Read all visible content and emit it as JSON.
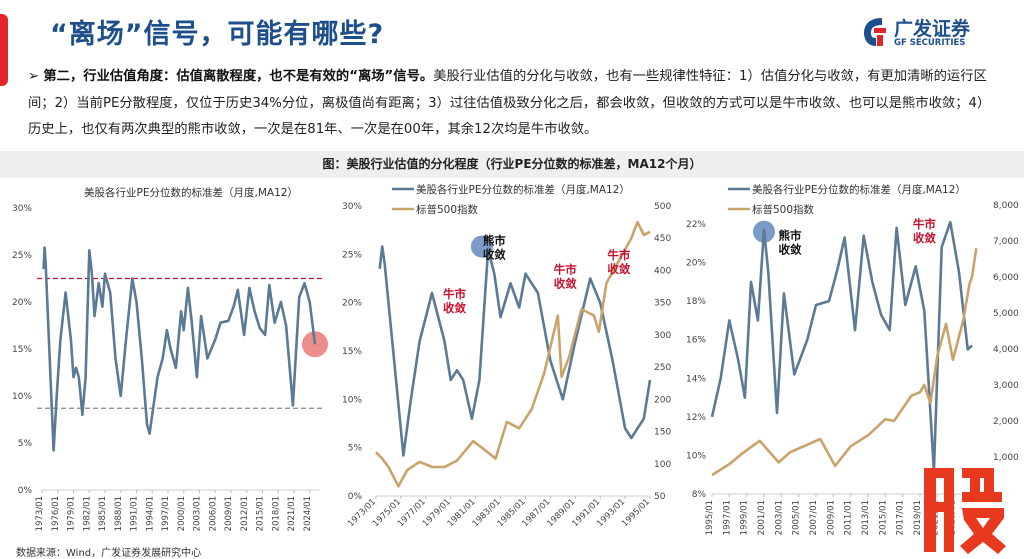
{
  "header": {
    "title": "“离场”信号，可能有哪些?",
    "logo_cn": "广发证券",
    "logo_en": "GF SECURITIES"
  },
  "bullet": {
    "marker": "➢",
    "bold": "第二，行业估值角度：估值离散程度，也不是有效的“离场”信号。",
    "text": "美股行业估值的分化与收敛，也有一些规律性特征：1）估值分化与收敛，有更加清晰的运行区间；2）当前PE分散程度，仅位于历史34%分位，离极值尚有距离；3）过往估值极致分化之后，都会收敛，但收敛的方式可以是牛市收敛、也可以是熊市收敛；4）历史上，也仅有两次典型的熊市收敛，一次是在81年、一次是在00年，其余12次均是牛市收敛。"
  },
  "caption": "图：美股行业估值的分化程度（行业PE分位数的标准差，MA12个月）",
  "source": "数据来源：Wind，广发证券发展研究中心",
  "watermark": "股",
  "colors": {
    "pe": "#5b7a95",
    "sp": "#c9a36a",
    "red": "#c8102e",
    "title": "#1d4f8c"
  },
  "chart_data": [
    {
      "type": "line",
      "title": "美股各行业PE分位数的标准差（月度,MA12）",
      "ylim": [
        0,
        30
      ],
      "yticks": [
        "0%",
        "5%",
        "10%",
        "15%",
        "20%",
        "25%",
        "30%"
      ],
      "xticks": [
        "1973/01",
        "1976/01",
        "1979/01",
        "1982/01",
        "1985/01",
        "1988/01",
        "1991/01",
        "1994/01",
        "1997/01",
        "2000/01",
        "2003/01",
        "2006/01",
        "2009/01",
        "2012/01",
        "2015/01",
        "2018/01",
        "2021/01",
        "2024/01"
      ],
      "ref_lines": [
        {
          "value": 22.5,
          "color": "#c8102e"
        },
        {
          "value": 8.7,
          "color": "#888888"
        }
      ],
      "highlight": {
        "year": 2025,
        "value": 15.5
      },
      "series": [
        {
          "name": "PE std",
          "x": [
            1973.3,
            1973.5,
            1973.7,
            1974,
            1975.2,
            1975.8,
            1976.5,
            1977.5,
            1978.5,
            1979,
            1979.5,
            1980,
            1980.7,
            1981.3,
            1982,
            1982.5,
            1983,
            1983.8,
            1984.5,
            1985,
            1986,
            1987,
            1988,
            1989,
            1990.2,
            1991,
            1992,
            1993,
            1993.5,
            1995,
            1996,
            1996.8,
            1997.5,
            1998.5,
            1999.5,
            2000,
            2000.8,
            2001.5,
            2002.5,
            2003.3,
            2004.5,
            2006,
            2007,
            2008.5,
            2009.5,
            2010.3,
            2011.5,
            2012.5,
            2013.5,
            2014.5,
            2015.5,
            2016.3,
            2017.3,
            2018.5,
            2019.5,
            2020.8,
            2022,
            2023,
            2024,
            2025
          ],
          "y": [
            23.5,
            25.8,
            24,
            20,
            4.2,
            10,
            16,
            21,
            16,
            12,
            13,
            12,
            8,
            12,
            25.5,
            23,
            18.5,
            22,
            19.5,
            23,
            21,
            14,
            10,
            16,
            22.5,
            20,
            14,
            7,
            6,
            12,
            14,
            17,
            15,
            13,
            19,
            17,
            21.5,
            18,
            12,
            18.5,
            14,
            16,
            17.8,
            18,
            19.5,
            21.3,
            16.5,
            21.5,
            19,
            17.2,
            16.5,
            21.8,
            17.8,
            20,
            17.5,
            9,
            20.5,
            22,
            20,
            15.5
          ]
        }
      ]
    },
    {
      "type": "line",
      "legend": [
        "美股各行业PE分位数的标准差（月度,MA12）",
        "标普500指数"
      ],
      "ylim": [
        0,
        30
      ],
      "y2lim": [
        50,
        500
      ],
      "yticks": [
        "0%",
        "5%",
        "10%",
        "15%",
        "20%",
        "25%",
        "30%"
      ],
      "y2ticks": [
        "50",
        "100",
        "150",
        "200",
        "250",
        "300",
        "350",
        "400",
        "450",
        "500"
      ],
      "xticks": [
        "1973/01",
        "1975/01",
        "1977/01",
        "1979/01",
        "1981/01",
        "1983/01",
        "1985/01",
        "1987/01",
        "1989/01",
        "1991/01",
        "1993/01",
        "1995/01"
      ],
      "annotations": [
        {
          "text": "牛市\n收敛",
          "kind": "bull",
          "year": 1979.3,
          "value": 20.5
        },
        {
          "text": "熊市\n收敛",
          "kind": "bear",
          "year": 1982.5,
          "value": 26
        },
        {
          "text": "牛市\n收敛",
          "kind": "bull",
          "year": 1988.2,
          "value": 23
        },
        {
          "text": "牛市\n收敛",
          "kind": "bull",
          "year": 1992.5,
          "value": 24.5
        }
      ],
      "highlight": {
        "year": 1981.5,
        "value": 25.8
      },
      "series": [
        {
          "name": "PE std",
          "axis": "left",
          "x": [
            1973.3,
            1973.5,
            1973.7,
            1974,
            1975.2,
            1975.8,
            1976.5,
            1977.5,
            1978.5,
            1979,
            1979.5,
            1980,
            1980.7,
            1981.3,
            1982,
            1982.5,
            1983,
            1983.8,
            1984.5,
            1985,
            1986,
            1987,
            1988,
            1989,
            1990.2,
            1991,
            1992,
            1993,
            1993.5,
            1994.5,
            1995
          ],
          "y": [
            23.5,
            25.8,
            24,
            20,
            4.2,
            10,
            16,
            21,
            16,
            12,
            13,
            12,
            8,
            12,
            25.5,
            23,
            18.5,
            22,
            19.5,
            23,
            21,
            14,
            10,
            16,
            22.5,
            20,
            14,
            7,
            6,
            8,
            12
          ]
        },
        {
          "name": "S&P500",
          "axis": "right",
          "x": [
            1973,
            1973.5,
            1974,
            1974.8,
            1975.5,
            1976.5,
            1977.5,
            1978.5,
            1979.5,
            1980.8,
            1981.5,
            1982.6,
            1983.5,
            1984.5,
            1985.5,
            1986.5,
            1987.6,
            1987.9,
            1988.5,
            1989.5,
            1990.5,
            1990.9,
            1991.5,
            1992.5,
            1993.5,
            1994,
            1994.5,
            1995
          ],
          "y": [
            118,
            108,
            95,
            65,
            90,
            103,
            95,
            95,
            105,
            135,
            125,
            108,
            165,
            155,
            185,
            240,
            330,
            235,
            265,
            340,
            330,
            305,
            380,
            415,
            450,
            475,
            455,
            460
          ]
        }
      ]
    },
    {
      "type": "line",
      "legend": [
        "美股各行业PE分位数的标准差（月度,MA12）",
        "标普500指数"
      ],
      "ylim": [
        8,
        22.5
      ],
      "y2lim": [
        0,
        8000
      ],
      "yticks": [
        "8%",
        "10%",
        "12%",
        "14%",
        "16%",
        "18%",
        "20%",
        "22%"
      ],
      "y2ticks": [
        "1,000",
        "2,000",
        "3,000",
        "4,000",
        "5,000",
        "6,000",
        "7,000",
        "8,000"
      ],
      "xticks": [
        "1995/01",
        "1997/01",
        "1999/01",
        "2001/01",
        "2003/01",
        "2005/01",
        "2007/01",
        "2009/01",
        "2011/01",
        "2013/01",
        "2015/01",
        "2017/01",
        "2019/01",
        "2021/01",
        "2023/01"
      ],
      "annotations": [
        {
          "text": "熊市\n收敛",
          "kind": "bear",
          "year": 2004,
          "value": 21.2
        },
        {
          "text": "牛市\n收敛",
          "kind": "bull",
          "year": 2019.5,
          "value": 21.8
        }
      ],
      "highlight": {
        "year": 2001,
        "value": 21.6
      },
      "series": [
        {
          "name": "PE std",
          "axis": "left",
          "x": [
            1995,
            1996,
            1997,
            1998,
            1998.8,
            1999.5,
            2000.3,
            2001,
            2001.5,
            2002.5,
            2003.3,
            2004.5,
            2006,
            2007,
            2008.5,
            2009.5,
            2010.3,
            2011.5,
            2012.5,
            2013.5,
            2014.5,
            2015.5,
            2016.3,
            2017.3,
            2018.5,
            2019.5,
            2020.6,
            2021.5,
            2022.5,
            2023.5,
            2024.5,
            2025
          ],
          "y": [
            12,
            14,
            17,
            15,
            13,
            19,
            17,
            21.7,
            19.5,
            12.2,
            18.4,
            14.2,
            16,
            17.8,
            18,
            19.7,
            21.3,
            16.5,
            21.4,
            19,
            17.3,
            16.5,
            21.8,
            17.8,
            19.8,
            17.5,
            9.2,
            20.8,
            22.1,
            19.5,
            15.5,
            15.7
          ]
        },
        {
          "name": "S&P500",
          "axis": "right",
          "x": [
            1995,
            1997,
            1998.5,
            2000.5,
            2002.7,
            2004,
            2007.5,
            2009.2,
            2011,
            2013,
            2015,
            2016,
            2018,
            2019,
            2019.5,
            2020.2,
            2021,
            2022,
            2022.8,
            2024,
            2024.7,
            2025,
            2025.5
          ],
          "y": [
            500,
            800,
            1100,
            1450,
            850,
            1130,
            1500,
            750,
            1300,
            1600,
            2050,
            2000,
            2700,
            2800,
            3000,
            2500,
            3800,
            4700,
            3700,
            4800,
            5800,
            6000,
            6800
          ]
        }
      ]
    }
  ]
}
